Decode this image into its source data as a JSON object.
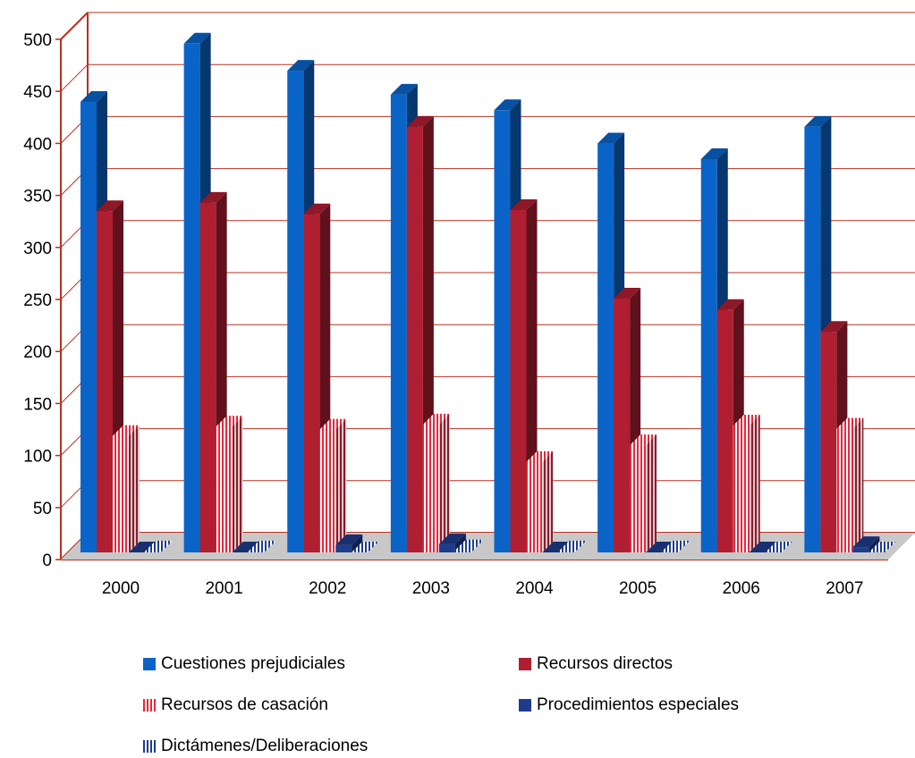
{
  "chart_data": {
    "type": "bar",
    "categories": [
      "2000",
      "2001",
      "2002",
      "2003",
      "2004",
      "2005",
      "2006",
      "2007"
    ],
    "series": [
      {
        "name": "Cuestiones prejudiciales",
        "values": [
          433,
          489,
          463,
          440,
          425,
          393,
          378,
          409
        ],
        "color": "#0a64c8",
        "pattern": "solid"
      },
      {
        "name": "Recursos directos",
        "values": [
          328,
          336,
          325,
          409,
          329,
          244,
          233,
          212
        ],
        "color": "#b01e32",
        "pattern": "solid"
      },
      {
        "name": "Recursos de casación",
        "values": [
          112,
          121,
          118,
          123,
          87,
          103,
          122,
          119
        ],
        "color": "#e8283c",
        "pattern": "vertical-stripes"
      },
      {
        "name": "Procedimientos especiales",
        "values": [
          0,
          0,
          7,
          8,
          0,
          0,
          0,
          5
        ],
        "color": "#1f3c8c",
        "pattern": "solid"
      },
      {
        "name": "Dictámenes/Deliberaciones",
        "values": [
          1,
          1,
          0,
          2,
          1,
          1,
          0,
          0
        ],
        "color": "#1f3c8c",
        "pattern": "vertical-stripes"
      }
    ],
    "y_ticks": [
      "0",
      "50",
      "100",
      "150",
      "200",
      "250",
      "300",
      "350",
      "400",
      "450",
      "500"
    ],
    "ylim": [
      0,
      500
    ],
    "grid": true,
    "legend_position": "bottom"
  }
}
